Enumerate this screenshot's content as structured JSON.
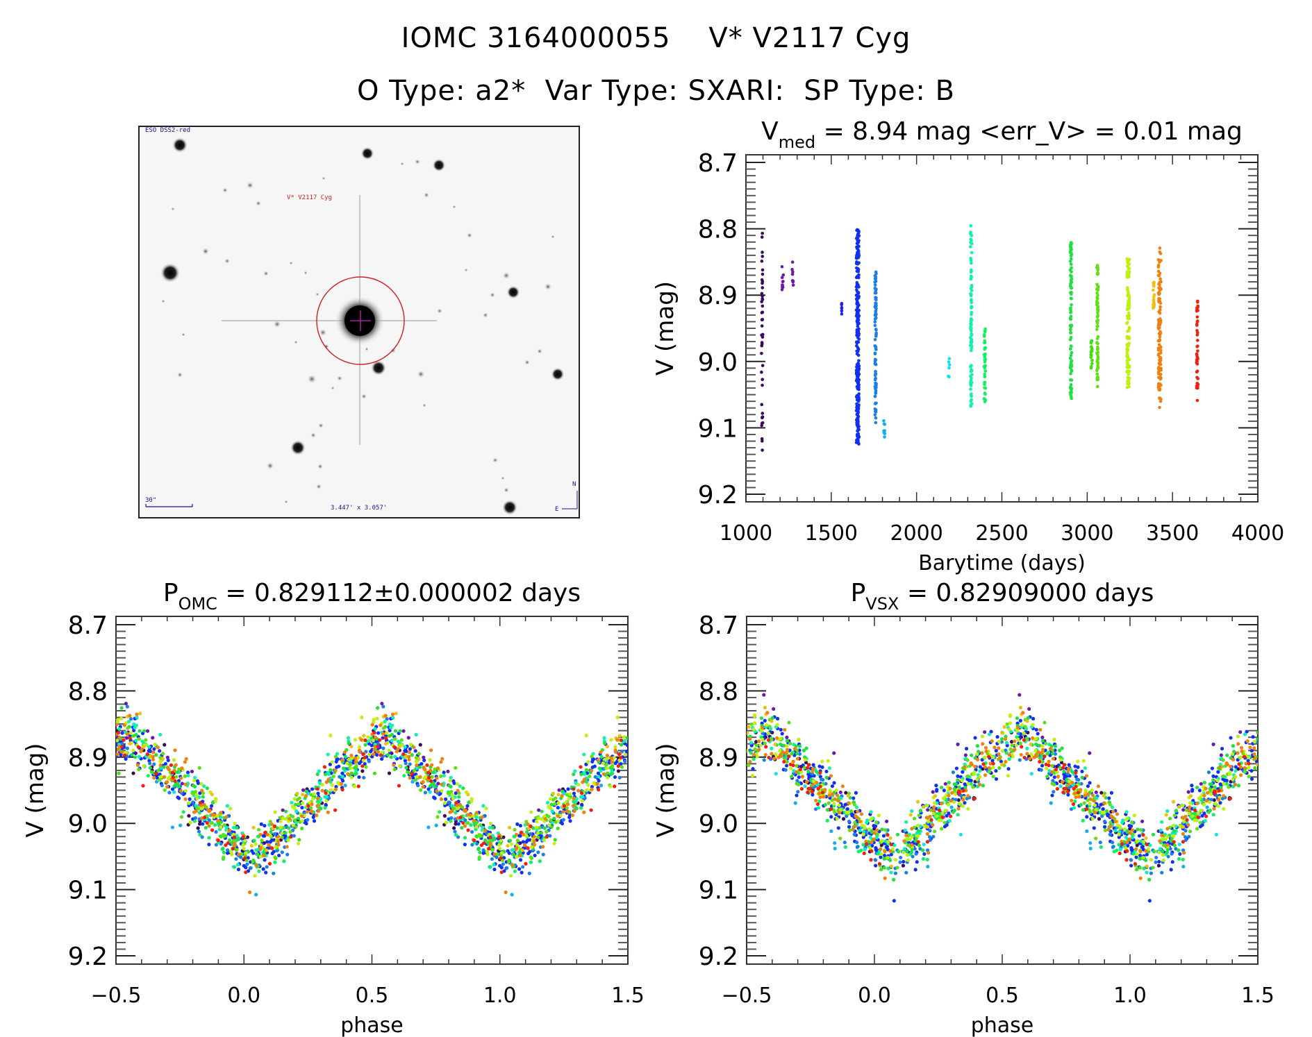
{
  "header": {
    "title_line1": "IOMC 3164000055    V* V2117 Cyg",
    "title_line2": "O Type: a2*  Var Type: SXARI:  SP Type: B"
  },
  "image_panel": {
    "survey_label": "ESO DSS2-red",
    "object_label": "V* V2117 Cyg",
    "scale_label": "30\"",
    "fov_label": "3.447' x 3.057'",
    "north_label": "N",
    "east_label": "E",
    "circle_color": "#cc2020",
    "crosshair_color": "#a020a0"
  },
  "chart_data": [
    {
      "id": "lightcurve",
      "type": "scatter",
      "title_main": "V",
      "title_sub": "med",
      "title_rest": " = 8.94 mag <err_V> = 0.01 mag",
      "xlabel": "Barytime (days)",
      "ylabel": "V (mag)",
      "xlim": [
        1000,
        4000
      ],
      "ylim": [
        9.2,
        8.7
      ],
      "y_inverted": true,
      "xticks": [
        1000,
        1500,
        2000,
        2500,
        3000,
        3500,
        4000
      ],
      "xtick_labels": [
        "1000",
        "1500",
        "2000",
        "2500",
        "3000",
        "3500",
        "4000"
      ],
      "yticks": [
        8.7,
        8.8,
        8.9,
        9.0,
        9.1,
        9.2
      ],
      "ytick_labels": [
        "8.7",
        "8.8",
        "8.9",
        "9.0",
        "9.1",
        "9.2"
      ],
      "color_scale": "rainbow by time",
      "clusters": [
        {
          "t": 1095,
          "vmin": 8.805,
          "vmax": 9.135,
          "n": 45,
          "color": "#3a0a5a"
        },
        {
          "t": 1215,
          "vmin": 8.845,
          "vmax": 8.895,
          "n": 10,
          "color": "#6a1aa8"
        },
        {
          "t": 1275,
          "vmin": 8.85,
          "vmax": 8.885,
          "n": 8,
          "color": "#6a1aa8"
        },
        {
          "t": 1560,
          "vmin": 8.91,
          "vmax": 8.93,
          "n": 6,
          "color": "#2020e0"
        },
        {
          "t": 1655,
          "vmin": 8.8,
          "vmax": 9.125,
          "n": 260,
          "color": "#1030f0"
        },
        {
          "t": 1760,
          "vmin": 8.865,
          "vmax": 9.1,
          "n": 90,
          "color": "#1a80e8"
        },
        {
          "t": 1810,
          "vmin": 9.085,
          "vmax": 9.115,
          "n": 8,
          "color": "#10b0f0"
        },
        {
          "t": 2190,
          "vmin": 8.995,
          "vmax": 9.03,
          "n": 6,
          "color": "#10e0f0"
        },
        {
          "t": 2320,
          "vmin": 8.795,
          "vmax": 9.075,
          "n": 90,
          "color": "#10f0b0"
        },
        {
          "t": 2400,
          "vmin": 8.945,
          "vmax": 9.065,
          "n": 35,
          "color": "#10f060"
        },
        {
          "t": 2905,
          "vmin": 8.82,
          "vmax": 9.06,
          "n": 90,
          "color": "#20e040"
        },
        {
          "t": 3025,
          "vmin": 8.965,
          "vmax": 9.01,
          "n": 20,
          "color": "#40e010"
        },
        {
          "t": 3060,
          "vmin": 8.855,
          "vmax": 9.045,
          "n": 70,
          "color": "#60e010"
        },
        {
          "t": 3240,
          "vmin": 8.845,
          "vmax": 9.04,
          "n": 120,
          "color": "#c0f010"
        },
        {
          "t": 3390,
          "vmin": 8.88,
          "vmax": 8.92,
          "n": 20,
          "color": "#f0c010"
        },
        {
          "t": 3425,
          "vmin": 8.825,
          "vmax": 9.07,
          "n": 110,
          "color": "#f08010"
        },
        {
          "t": 3645,
          "vmin": 8.905,
          "vmax": 9.06,
          "n": 45,
          "color": "#f02010"
        }
      ]
    },
    {
      "id": "phase_omc",
      "type": "scatter",
      "title_main": "P",
      "title_sub": "OMC",
      "title_rest": " = 0.829112±0.000002 days",
      "xlabel": "phase",
      "ylabel": "V (mag)",
      "xlim": [
        -0.5,
        1.5
      ],
      "ylim": [
        9.2,
        8.7
      ],
      "y_inverted": true,
      "xticks": [
        -0.5,
        0.0,
        0.5,
        1.0,
        1.5
      ],
      "xtick_labels": [
        "−0.5",
        "0.0",
        "0.5",
        "1.0",
        "1.5"
      ],
      "yticks": [
        8.7,
        8.8,
        8.9,
        9.0,
        9.1,
        9.2
      ],
      "ytick_labels": [
        "8.7",
        "8.8",
        "8.9",
        "9.0",
        "9.1",
        "9.2"
      ],
      "period_days": 0.829112,
      "period_err": 2e-06,
      "curve_shape": {
        "max_phase": 0.55,
        "max_mag": 8.86,
        "min_phase": 0.04,
        "min_mag": 9.05,
        "bump_phase": 0.4,
        "bump_mag": 8.91
      },
      "phase_offset": 0.0
    },
    {
      "id": "phase_vsx",
      "type": "scatter",
      "title_main": "P",
      "title_sub": "VSX",
      "title_rest": " = 0.82909000 days",
      "xlabel": "phase",
      "ylabel": "V (mag)",
      "xlim": [
        -0.5,
        1.5
      ],
      "ylim": [
        9.2,
        8.7
      ],
      "y_inverted": true,
      "xticks": [
        -0.5,
        0.0,
        0.5,
        1.0,
        1.5
      ],
      "xtick_labels": [
        "−0.5",
        "0.0",
        "0.5",
        "1.0",
        "1.5"
      ],
      "yticks": [
        8.7,
        8.8,
        8.9,
        9.0,
        9.1,
        9.2
      ],
      "ytick_labels": [
        "8.7",
        "8.8",
        "8.9",
        "9.0",
        "9.1",
        "9.2"
      ],
      "period_days": 0.82909,
      "curve_shape": {
        "max_phase": 0.58,
        "max_mag": 8.86,
        "min_phase": 0.08,
        "min_mag": 9.05,
        "bump_phase": 0.42,
        "bump_mag": 8.91
      },
      "phase_offset": 0.05
    }
  ]
}
